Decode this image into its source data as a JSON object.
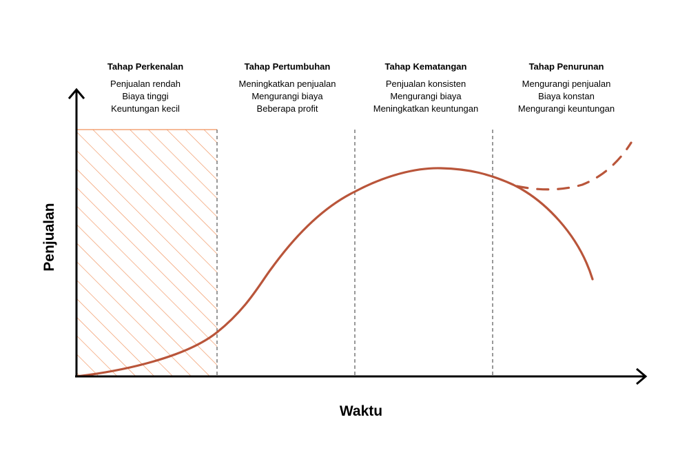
{
  "axes": {
    "x_label": "Waktu",
    "y_label": "Penjualan"
  },
  "stages": [
    {
      "title": "Tahap Perkenalan",
      "lines": [
        "Penjualan rendah",
        "Biaya tinggi",
        "Keuntungan kecil"
      ]
    },
    {
      "title": "Tahap Pertumbuhan",
      "lines": [
        "Meningkatkan penjualan",
        "Mengurangi biaya",
        "Beberapa profit"
      ]
    },
    {
      "title": "Tahap Kematangan",
      "lines": [
        "Penjualan konsisten",
        "Mengurangi biaya",
        "Meningkatkan keuntungan"
      ]
    },
    {
      "title": "Tahap Penurunan",
      "lines": [
        "Mengurangi penjualan",
        "Biaya konstan",
        "Mengurangi keuntungan"
      ]
    }
  ],
  "colors": {
    "curve": "#b9553a",
    "hatch": "#f0905a",
    "axis": "#000000",
    "divider": "#555555"
  }
}
